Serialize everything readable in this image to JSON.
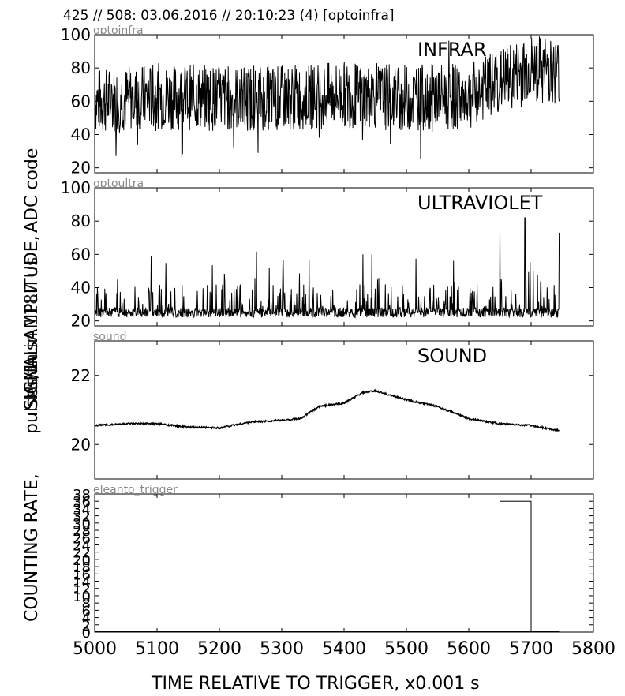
{
  "title": "425 // 508:   03.06.2016 // 20:10:23 (4)  [optoinfra]",
  "xlabel": "TIME RELATIVE TO TRIGGER,   x0.001 s",
  "ylabels": [
    "COUNTING RATE,",
    "pulses/1us",
    "SIGNAL AMPLITUDE,",
    "ADC code",
    "Mean in 1187 us"
  ],
  "chart_data": [
    {
      "type": "line",
      "source_label": "optoinfra",
      "panel_label": "INFRAR",
      "x_range": [
        5000,
        5800
      ],
      "xlim": [
        5000,
        5800
      ],
      "ylim": [
        17,
        100
      ],
      "y_ticks": [
        "20",
        "40",
        "60",
        "80",
        "100"
      ],
      "x_ticks": [],
      "series": [
        {
          "trend_x": [
            5000,
            5100,
            5200,
            5300,
            5400,
            5500,
            5600,
            5650,
            5700,
            5745
          ],
          "trend_y": [
            60,
            63,
            62,
            62,
            64,
            62,
            63,
            72,
            80,
            78
          ],
          "min": 25,
          "max": 100
        }
      ]
    },
    {
      "type": "line",
      "source_label": "optoultra",
      "panel_label": "ULTRAVIOLET",
      "xlim": [
        5000,
        5800
      ],
      "ylim": [
        17,
        100
      ],
      "y_ticks": [
        "20",
        "40",
        "60",
        "80",
        "100"
      ],
      "series": [
        {
          "baseline": 22,
          "min": 21,
          "max": 82,
          "peaks": [
            {
              "x": 5650,
              "y": 75
            },
            {
              "x": 5690,
              "y": 82
            },
            {
              "x": 5745,
              "y": 73
            }
          ]
        }
      ]
    },
    {
      "type": "line",
      "source_label": "sound",
      "panel_label": "SOUND",
      "xlim": [
        5000,
        5800
      ],
      "ylim": [
        19,
        23
      ],
      "y_ticks": [
        "20",
        "22"
      ],
      "series": [
        {
          "x": [
            5000,
            5050,
            5100,
            5150,
            5200,
            5250,
            5300,
            5330,
            5360,
            5400,
            5430,
            5450,
            5480,
            5510,
            5550,
            5600,
            5650,
            5700,
            5745
          ],
          "y": [
            20.55,
            20.6,
            20.6,
            20.5,
            20.48,
            20.65,
            20.7,
            20.75,
            21.1,
            21.2,
            21.5,
            21.55,
            21.4,
            21.25,
            21.1,
            20.75,
            20.6,
            20.55,
            20.4
          ]
        }
      ]
    },
    {
      "type": "bar",
      "source_label": "eleanto_trigger",
      "xlim": [
        5000,
        5800
      ],
      "ylim": [
        0,
        38
      ],
      "y_ticks": [
        "0",
        "2",
        "4",
        "6",
        "8",
        "10",
        "12",
        "14",
        "16",
        "18",
        "20",
        "22",
        "24",
        "26",
        "28",
        "30",
        "32",
        "34",
        "36",
        "38"
      ],
      "x_ticks": [
        "5000",
        "5100",
        "5200",
        "5300",
        "5400",
        "5500",
        "5600",
        "5700",
        "5800"
      ],
      "bars": [
        {
          "x0": 5650,
          "x1": 5700,
          "y": 36
        }
      ]
    }
  ]
}
